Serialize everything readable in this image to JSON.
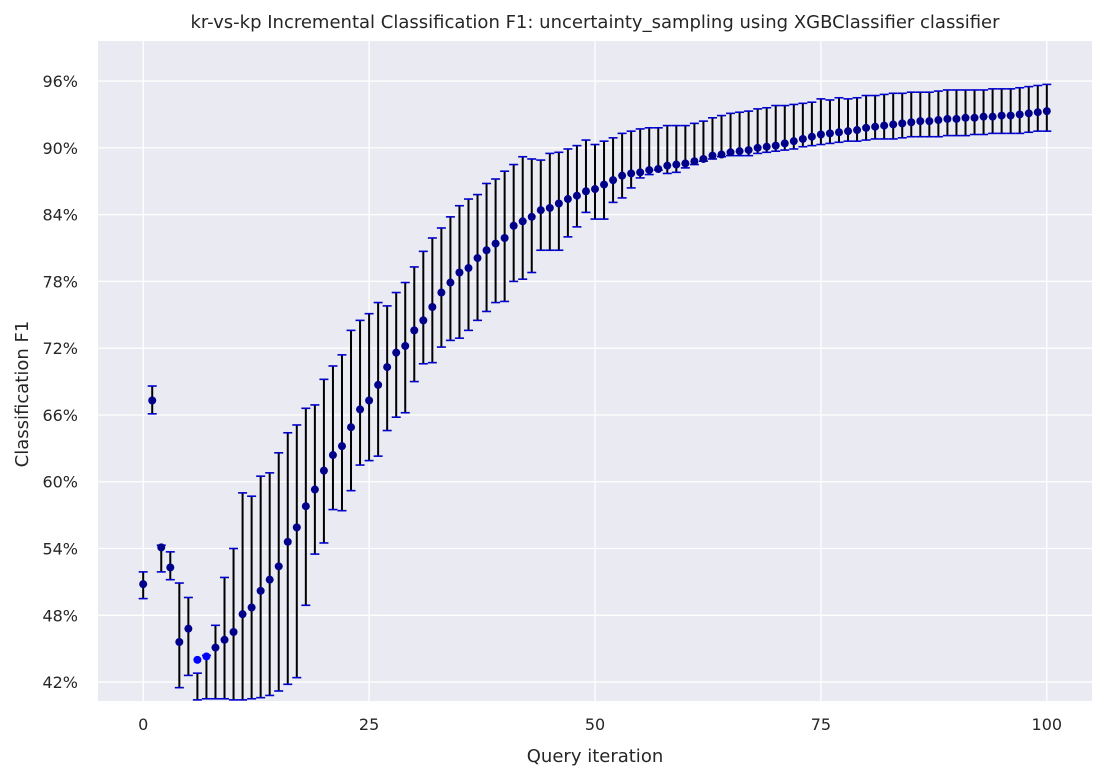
{
  "chart_data": {
    "type": "scatter",
    "title": "kr-vs-kp Incremental Classification F1: uncertainty_sampling using XGBClassifier classifier",
    "xlabel": "Query iteration",
    "ylabel": "Classification F1",
    "xlim": [
      -5,
      105
    ],
    "ylim": [
      40.3,
      99.6
    ],
    "xticks": [
      0,
      25,
      50,
      75,
      100
    ],
    "yticks": [
      42,
      48,
      54,
      60,
      66,
      72,
      78,
      84,
      90,
      96
    ],
    "ytick_suffix": "%",
    "grid": true,
    "legend": "none",
    "colors": {
      "background": "#eaeaf2",
      "grid": "#ffffff",
      "marker": "#00008b",
      "marker_highlight": "#0000ff",
      "errorbar": "#000000",
      "cap": "#0000cd"
    },
    "x": [
      0,
      1,
      2,
      3,
      4,
      5,
      6,
      7,
      8,
      9,
      10,
      11,
      12,
      13,
      14,
      15,
      16,
      17,
      18,
      19,
      20,
      21,
      22,
      23,
      24,
      25,
      26,
      27,
      28,
      29,
      30,
      31,
      32,
      33,
      34,
      35,
      36,
      37,
      38,
      39,
      40,
      41,
      42,
      43,
      44,
      45,
      46,
      47,
      48,
      49,
      50,
      51,
      52,
      53,
      54,
      55,
      56,
      57,
      58,
      59,
      60,
      61,
      62,
      63,
      64,
      65,
      66,
      67,
      68,
      69,
      70,
      71,
      72,
      73,
      74,
      75,
      76,
      77,
      78,
      79,
      80,
      81,
      82,
      83,
      84,
      85,
      86,
      87,
      88,
      89,
      90,
      91,
      92,
      93,
      94,
      95,
      96,
      97,
      98,
      99,
      100
    ],
    "mean": [
      50.8,
      67.3,
      54.1,
      52.3,
      45.6,
      46.8,
      44.0,
      44.3,
      45.1,
      45.8,
      46.5,
      48.1,
      48.7,
      50.2,
      51.2,
      52.4,
      54.6,
      55.9,
      57.8,
      59.3,
      61.0,
      62.4,
      63.2,
      64.9,
      66.5,
      67.3,
      68.7,
      70.3,
      71.6,
      72.2,
      73.6,
      74.5,
      75.7,
      77.0,
      77.9,
      78.8,
      79.2,
      80.1,
      80.8,
      81.4,
      81.9,
      83.0,
      83.4,
      83.8,
      84.4,
      84.6,
      85.0,
      85.4,
      85.7,
      86.1,
      86.3,
      86.7,
      87.1,
      87.5,
      87.7,
      87.8,
      88.0,
      88.1,
      88.4,
      88.5,
      88.6,
      88.8,
      89.0,
      89.3,
      89.4,
      89.6,
      89.7,
      89.8,
      90.0,
      90.1,
      90.2,
      90.4,
      90.6,
      90.8,
      91.0,
      91.2,
      91.3,
      91.4,
      91.5,
      91.6,
      91.8,
      91.9,
      92.0,
      92.1,
      92.2,
      92.3,
      92.4,
      92.4,
      92.5,
      92.6,
      92.6,
      92.7,
      92.7,
      92.8,
      92.8,
      92.9,
      92.9,
      93.0,
      93.1,
      93.2,
      93.3
    ],
    "lower": [
      49.5,
      66.1,
      51.9,
      51.2,
      41.5,
      42.6,
      40.4,
      40.5,
      40.5,
      40.5,
      40.4,
      40.4,
      40.5,
      40.6,
      40.8,
      41.2,
      41.8,
      42.4,
      48.9,
      53.5,
      54.5,
      57.5,
      57.4,
      59.2,
      61.5,
      61.9,
      62.3,
      64.6,
      65.8,
      66.2,
      69.0,
      70.6,
      70.7,
      72.1,
      72.7,
      72.9,
      73.6,
      74.5,
      75.3,
      76.1,
      76.2,
      78.0,
      78.2,
      78.8,
      80.8,
      80.8,
      80.8,
      82.0,
      82.9,
      84.2,
      83.6,
      83.6,
      85.1,
      85.5,
      86.4,
      87.3,
      87.6,
      88.0,
      87.7,
      87.8,
      88.2,
      88.5,
      88.8,
      89.0,
      89.2,
      89.3,
      89.3,
      89.3,
      89.5,
      89.6,
      89.7,
      89.8,
      89.9,
      90.1,
      90.2,
      90.3,
      90.4,
      90.5,
      90.6,
      90.6,
      90.7,
      90.8,
      90.8,
      90.8,
      90.9,
      91.0,
      91.0,
      91.0,
      91.0,
      91.1,
      91.1,
      91.1,
      91.2,
      91.2,
      91.3,
      91.3,
      91.3,
      91.3,
      91.4,
      91.5,
      91.5
    ],
    "upper": [
      51.9,
      68.6,
      54.3,
      53.7,
      50.9,
      49.6,
      42.8,
      44.4,
      47.1,
      51.4,
      54.0,
      59.0,
      58.7,
      60.5,
      60.8,
      62.6,
      64.4,
      65.1,
      66.6,
      66.9,
      69.2,
      70.4,
      71.4,
      73.6,
      74.5,
      75.1,
      76.1,
      75.8,
      77.0,
      77.9,
      79.3,
      80.7,
      81.9,
      82.8,
      83.8,
      84.8,
      85.4,
      85.8,
      86.8,
      87.2,
      87.9,
      88.5,
      89.2,
      89.0,
      88.9,
      89.5,
      89.6,
      89.9,
      90.2,
      90.7,
      90.3,
      90.6,
      90.9,
      91.3,
      91.5,
      91.7,
      91.8,
      91.8,
      92.0,
      92.0,
      92.0,
      92.2,
      92.4,
      92.7,
      92.9,
      93.1,
      93.2,
      93.3,
      93.5,
      93.6,
      93.8,
      93.8,
      93.9,
      94.0,
      94.1,
      94.4,
      94.3,
      94.5,
      94.4,
      94.5,
      94.7,
      94.7,
      94.8,
      94.9,
      94.9,
      95.0,
      95.0,
      95.0,
      95.1,
      95.2,
      95.2,
      95.2,
      95.2,
      95.2,
      95.3,
      95.3,
      95.3,
      95.4,
      95.5,
      95.6,
      95.7
    ]
  }
}
